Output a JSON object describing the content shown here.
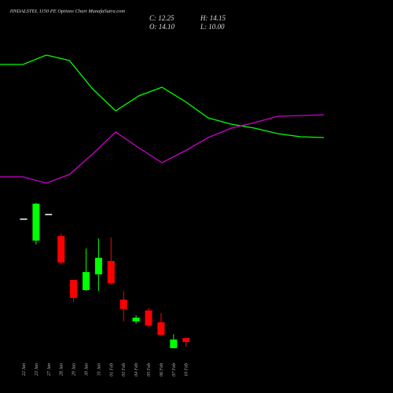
{
  "chart_data": [
    {
      "type": "candlestick",
      "title": "JINDALSTEL 1150 PE Options Chart MunafaSutra.com",
      "annotations": [
        "C: 12.25",
        "H: 14.15",
        "O: 14.10",
        "L: 10.00"
      ],
      "categories": [
        "22 Jan",
        "23 Jan",
        "27 Jan",
        "28 Jan",
        "29 Jan",
        "30 Jan",
        "31 Jan",
        "01 Feb",
        "03 Feb",
        "04 Feb",
        "05 Feb",
        "06 Feb",
        "07 Feb",
        "10 Feb"
      ],
      "open": [
        70.4,
        60.0,
        72.6,
        62.2,
        41.5,
        36.7,
        44.1,
        50.4,
        32.2,
        21.9,
        27.1,
        21.5,
        9.3,
        14.1
      ],
      "high": [
        70.4,
        77.8,
        72.6,
        63.4,
        41.5,
        56.3,
        61.1,
        61.5,
        36.3,
        24.8,
        28.2,
        25.9,
        15.9,
        14.15
      ],
      "low": [
        70.4,
        58.2,
        72.6,
        48.9,
        31.1,
        36.3,
        36.3,
        39.3,
        21.9,
        20.8,
        19.3,
        15.2,
        9.3,
        10.0
      ],
      "close": [
        70.4,
        77.4,
        72.6,
        49.7,
        33.0,
        45.2,
        51.9,
        40.0,
        27.8,
        23.7,
        20.0,
        15.6,
        13.4,
        12.25
      ],
      "up_color": "#00ff00",
      "down_color": "#ff0000",
      "flat_color": "#ffffff",
      "ylim": [
        -11.8,
        80.8
      ]
    },
    {
      "type": "line",
      "series": [
        {
          "name": null,
          "color": "#00ff00",
          "values": [
            84,
            84,
            90,
            86.5,
            68.5,
            54.5,
            64,
            69.5,
            60.5,
            50,
            46,
            43.5,
            40,
            38,
            37.5
          ]
        },
        {
          "name": null,
          "color": "#cc00cc",
          "values": [
            12.5,
            12.5,
            8.5,
            14,
            27,
            41,
            31,
            21.5,
            29,
            37.5,
            43.5,
            47,
            51,
            51.5,
            52
          ]
        }
      ],
      "ylim": [
        0,
        100
      ]
    }
  ]
}
